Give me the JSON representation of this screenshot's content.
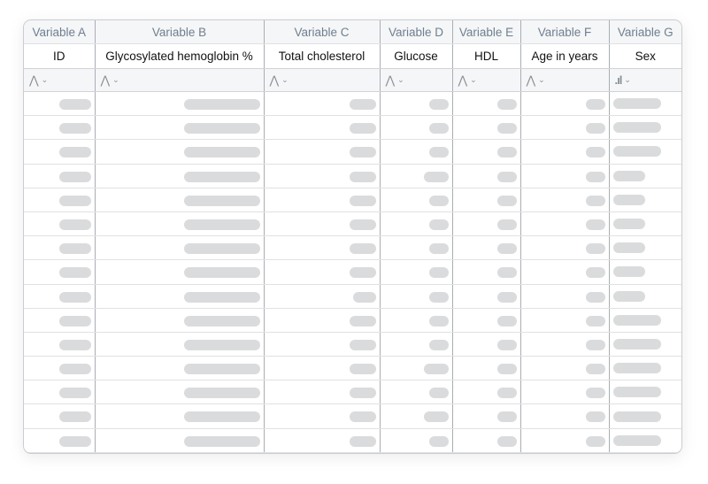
{
  "columns": [
    {
      "variable": "Variable A",
      "label": "ID",
      "type_icon": "distribution-icon"
    },
    {
      "variable": "Variable B",
      "label": "Glycosylated hemoglobin %",
      "type_icon": "distribution-icon"
    },
    {
      "variable": "Variable C",
      "label": "Total cholesterol",
      "type_icon": "distribution-icon"
    },
    {
      "variable": "Variable D",
      "label": "Glucose",
      "type_icon": "distribution-icon"
    },
    {
      "variable": "Variable E",
      "label": "HDL",
      "type_icon": "distribution-icon"
    },
    {
      "variable": "Variable F",
      "label": "Age in years",
      "type_icon": "distribution-icon"
    },
    {
      "variable": "Variable G",
      "label": "Sex",
      "type_icon": "bar-chart-icon"
    }
  ],
  "row_count": 15,
  "colors": {
    "header_text": "#6f7f8f",
    "placeholder": "#dadbdd",
    "border": "#a9adb3"
  }
}
